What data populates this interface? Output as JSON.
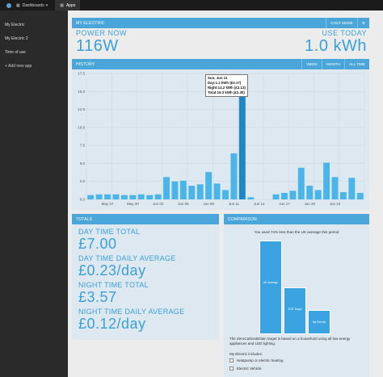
{
  "topbar": {
    "dashboards_label": "Dashboards",
    "apps_label": "Apps"
  },
  "sidebar": {
    "items": [
      {
        "label": "My Electric"
      },
      {
        "label": "My Electric 2"
      },
      {
        "label": "Time of use"
      }
    ],
    "add_label": "Add new app"
  },
  "my_electric": {
    "title": "MY ELECTRIC",
    "cost_mode_label": "COST MODE",
    "power_now_label": "POWER NOW",
    "power_now_value": "116W",
    "use_today_label": "USE TODAY",
    "use_today_value": "1.0 kWh"
  },
  "history": {
    "title": "HISTORY",
    "range_buttons": [
      "WEEK",
      "MONTH",
      "ALL TIME"
    ],
    "tooltip": {
      "date": "Sun, Jun 11",
      "day": "Day:1.1 kWh (£0.17)",
      "night": "Night:14.2 kWh (£2.13)",
      "total": "Total:15.3 kWh (£2.30)"
    }
  },
  "chart_data": {
    "type": "bar",
    "y_ticks": [
      "17.5",
      "15.0",
      "12.5",
      "10.0",
      "7.5",
      "5.0",
      "2.5",
      "0.0"
    ],
    "ylim": [
      0,
      17.5
    ],
    "x_tick_labels": [
      "May 27",
      "May 30",
      "Jun 02",
      "Jun 05",
      "Jun 08",
      "Jun 11",
      "Jun 14",
      "Jun 17",
      "Jun 20",
      "Jun 23"
    ],
    "x_tick_index": [
      3,
      6,
      9,
      12,
      15,
      18,
      21,
      24,
      27,
      30
    ],
    "grid": true,
    "series": [
      {
        "values": [
          0.6,
          0.7,
          0.7,
          0.7,
          0.6,
          0.6,
          0.7,
          0.6,
          0.7,
          3.1,
          2.5,
          2.6,
          1.9,
          2.1,
          3.8,
          2.2,
          1.3,
          6.4,
          15.3,
          0.3,
          null,
          null,
          0.7,
          0.9,
          1.2,
          4.4,
          1.9,
          1.3,
          5.1,
          3.1,
          1.0,
          3.0,
          0.9
        ]
      }
    ],
    "highlight_index": 18
  },
  "totals": {
    "title": "TOTALS",
    "items": [
      {
        "label": "DAY TIME TOTAL",
        "value": "£7.00"
      },
      {
        "label": "DAY TIME DAILY AVERAGE",
        "value": "£0.23/day"
      },
      {
        "label": "NIGHT TIME TOTAL",
        "value": "£3.57"
      },
      {
        "label": "NIGHT TIME DAILY AVERAGE",
        "value": "£0.12/day"
      }
    ]
  },
  "comparison": {
    "title": "COMPARISON",
    "note": "You used 74% less than the UK average this period",
    "bars": [
      {
        "label": "UK Average",
        "fraction": 1.0
      },
      {
        "label": "ZCB Target",
        "fraction": 0.5
      },
      {
        "label": "My Electric",
        "fraction": 0.26
      }
    ],
    "footnote": "The ZeroCarbonBritain target is based on a household using all low energy appliances and LED lighting.",
    "includes_label": "My Electric includes:",
    "includes": [
      "Heatpump or electric heating",
      "Electric Vehicle"
    ]
  },
  "colors": {
    "accent": "#3aa0d6",
    "bar": "#4ab5e8",
    "bar_dark": "#1f88c3"
  }
}
